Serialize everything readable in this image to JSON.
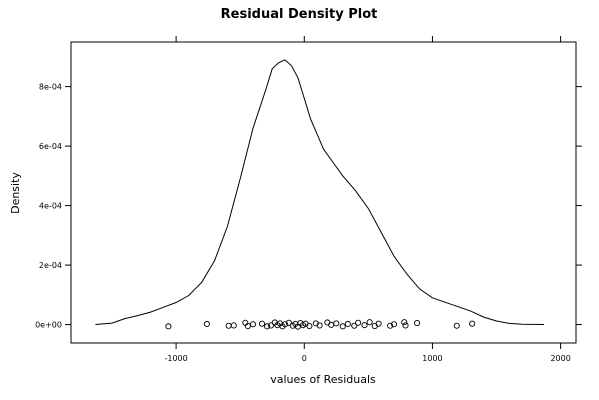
{
  "chart_data": {
    "type": "line",
    "title": "Residual Density Plot",
    "xlabel": "values of Residuals",
    "ylabel": "Density",
    "xlim": [
      -1820,
      2120
    ],
    "ylim": [
      -6.2e-05,
      0.00095
    ],
    "xticks": [
      {
        "value": -1000,
        "label": "-1000"
      },
      {
        "value": 0,
        "label": "0"
      },
      {
        "value": 1000,
        "label": "1000"
      },
      {
        "value": 2000,
        "label": "2000"
      }
    ],
    "yticks": [
      {
        "value": 0,
        "label": "0e+00"
      },
      {
        "value": 0.0002,
        "label": "2e-04"
      },
      {
        "value": 0.0004,
        "label": "4e-04"
      },
      {
        "value": 0.0006,
        "label": "6e-04"
      },
      {
        "value": 0.0008,
        "label": "8e-04"
      }
    ],
    "grid": false,
    "series": [
      {
        "x": [
          -1630,
          -1500,
          -1400,
          -1300,
          -1200,
          -1100,
          -1000,
          -900,
          -800,
          -700,
          -600,
          -500,
          -400,
          -300,
          -250,
          -200,
          -150,
          -100,
          -50,
          0,
          50,
          100,
          150,
          200,
          300,
          400,
          500,
          600,
          700,
          800,
          900,
          1000,
          1100,
          1200,
          1300,
          1400,
          1500,
          1600,
          1700,
          1870
        ],
        "y": [
          3e-07,
          5e-06,
          2e-05,
          3e-05,
          4.2e-05,
          5.8e-05,
          7.4e-05,
          9.8e-05,
          0.000142,
          0.000215,
          0.00033,
          0.00049,
          0.00066,
          0.00079,
          0.00086,
          0.00088,
          0.00089,
          0.00087,
          0.00083,
          0.00076,
          0.00069,
          0.00064,
          0.00059,
          0.00056,
          0.0005,
          0.00045,
          0.00039,
          0.00031,
          0.00023,
          0.00017,
          0.00012,
          9e-05,
          7.5e-05,
          6e-05,
          4.5e-05,
          2.5e-05,
          1.2e-05,
          4e-06,
          1.2e-06,
          1e-07
        ]
      }
    ],
    "rug_points": [
      {
        "x": -1060,
        "y": -6e-06
      },
      {
        "x": -760,
        "y": 2e-06
      },
      {
        "x": -590,
        "y": -4e-06
      },
      {
        "x": -550,
        "y": -3e-06
      },
      {
        "x": -460,
        "y": 6e-06
      },
      {
        "x": -440,
        "y": -5e-06
      },
      {
        "x": -400,
        "y": 1e-06
      },
      {
        "x": -330,
        "y": 3e-06
      },
      {
        "x": -290,
        "y": -6e-06
      },
      {
        "x": -260,
        "y": -3e-06
      },
      {
        "x": -230,
        "y": 7e-06
      },
      {
        "x": -210,
        "y": -2e-06
      },
      {
        "x": -190,
        "y": 4e-06
      },
      {
        "x": -170,
        "y": -6e-06
      },
      {
        "x": -150,
        "y": 1e-06
      },
      {
        "x": -120,
        "y": 6e-06
      },
      {
        "x": -90,
        "y": -4e-06
      },
      {
        "x": -70,
        "y": 2e-06
      },
      {
        "x": -50,
        "y": -7e-06
      },
      {
        "x": -30,
        "y": 5e-06
      },
      {
        "x": -10,
        "y": -2e-06
      },
      {
        "x": 10,
        "y": 3e-06
      },
      {
        "x": 40,
        "y": -5e-06
      },
      {
        "x": 90,
        "y": 4e-06
      },
      {
        "x": 120,
        "y": -3e-06
      },
      {
        "x": 180,
        "y": 7e-06
      },
      {
        "x": 210,
        "y": -1e-06
      },
      {
        "x": 250,
        "y": 4e-06
      },
      {
        "x": 300,
        "y": -6e-06
      },
      {
        "x": 340,
        "y": 2e-06
      },
      {
        "x": 390,
        "y": -4e-06
      },
      {
        "x": 420,
        "y": 6e-06
      },
      {
        "x": 470,
        "y": -2e-06
      },
      {
        "x": 510,
        "y": 8e-06
      },
      {
        "x": 550,
        "y": -5e-06
      },
      {
        "x": 580,
        "y": 3e-06
      },
      {
        "x": 670,
        "y": -4e-06
      },
      {
        "x": 700,
        "y": 1e-06
      },
      {
        "x": 780,
        "y": 8e-06
      },
      {
        "x": 790,
        "y": -3e-06
      },
      {
        "x": 880,
        "y": 5e-06
      },
      {
        "x": 1190,
        "y": -4e-06
      },
      {
        "x": 1310,
        "y": 3e-06
      }
    ]
  }
}
